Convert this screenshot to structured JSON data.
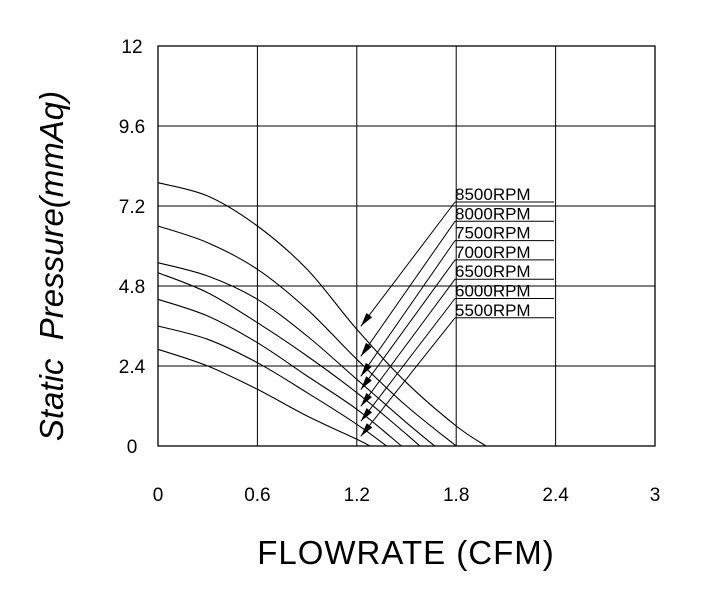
{
  "chart_data": {
    "type": "line",
    "xlabel": "FLOWRATE (CFM)",
    "ylabel": "Static  Pressure(mmAq)",
    "xlim": [
      0,
      3
    ],
    "ylim": [
      0,
      12
    ],
    "x_ticks": [
      "0",
      "0.6",
      "1.2",
      "1.8",
      "2.4",
      "3"
    ],
    "y_ticks": [
      "0",
      "2.4",
      "4.8",
      "7.2",
      "9.6",
      "12"
    ],
    "grid": true,
    "series": [
      {
        "name": "8500RPM",
        "points": [
          [
            0,
            7.9
          ],
          [
            0.3,
            7.5
          ],
          [
            0.6,
            6.6
          ],
          [
            0.9,
            5.3
          ],
          [
            1.2,
            3.5
          ],
          [
            1.5,
            1.9
          ],
          [
            1.8,
            0.6
          ],
          [
            1.98,
            0
          ]
        ]
      },
      {
        "name": "8000RPM",
        "points": [
          [
            0,
            6.6
          ],
          [
            0.3,
            6.1
          ],
          [
            0.6,
            5.3
          ],
          [
            0.9,
            4.1
          ],
          [
            1.2,
            2.6
          ],
          [
            1.5,
            1.2
          ],
          [
            1.8,
            0
          ]
        ]
      },
      {
        "name": "7500RPM",
        "points": [
          [
            0,
            5.5
          ],
          [
            0.3,
            5.1
          ],
          [
            0.6,
            4.4
          ],
          [
            0.9,
            3.3
          ],
          [
            1.2,
            2.0
          ],
          [
            1.5,
            0.7
          ],
          [
            1.67,
            0
          ]
        ]
      },
      {
        "name": "7000RPM",
        "points": [
          [
            0,
            5.2
          ],
          [
            0.3,
            4.6
          ],
          [
            0.6,
            3.7
          ],
          [
            0.9,
            2.7
          ],
          [
            1.2,
            1.6
          ],
          [
            1.5,
            0.35
          ],
          [
            1.58,
            0
          ]
        ]
      },
      {
        "name": "6500RPM",
        "points": [
          [
            0,
            4.4
          ],
          [
            0.3,
            3.9
          ],
          [
            0.6,
            3.1
          ],
          [
            0.9,
            2.1
          ],
          [
            1.2,
            1.1
          ],
          [
            1.47,
            0
          ]
        ]
      },
      {
        "name": "6000RPM",
        "points": [
          [
            0,
            3.6
          ],
          [
            0.3,
            3.2
          ],
          [
            0.6,
            2.5
          ],
          [
            0.9,
            1.6
          ],
          [
            1.2,
            0.65
          ],
          [
            1.38,
            0
          ]
        ]
      },
      {
        "name": "5500RPM",
        "points": [
          [
            0,
            2.9
          ],
          [
            0.3,
            2.4
          ],
          [
            0.6,
            1.7
          ],
          [
            0.9,
            0.9
          ],
          [
            1.2,
            0.2
          ],
          [
            1.28,
            0
          ]
        ]
      }
    ]
  }
}
